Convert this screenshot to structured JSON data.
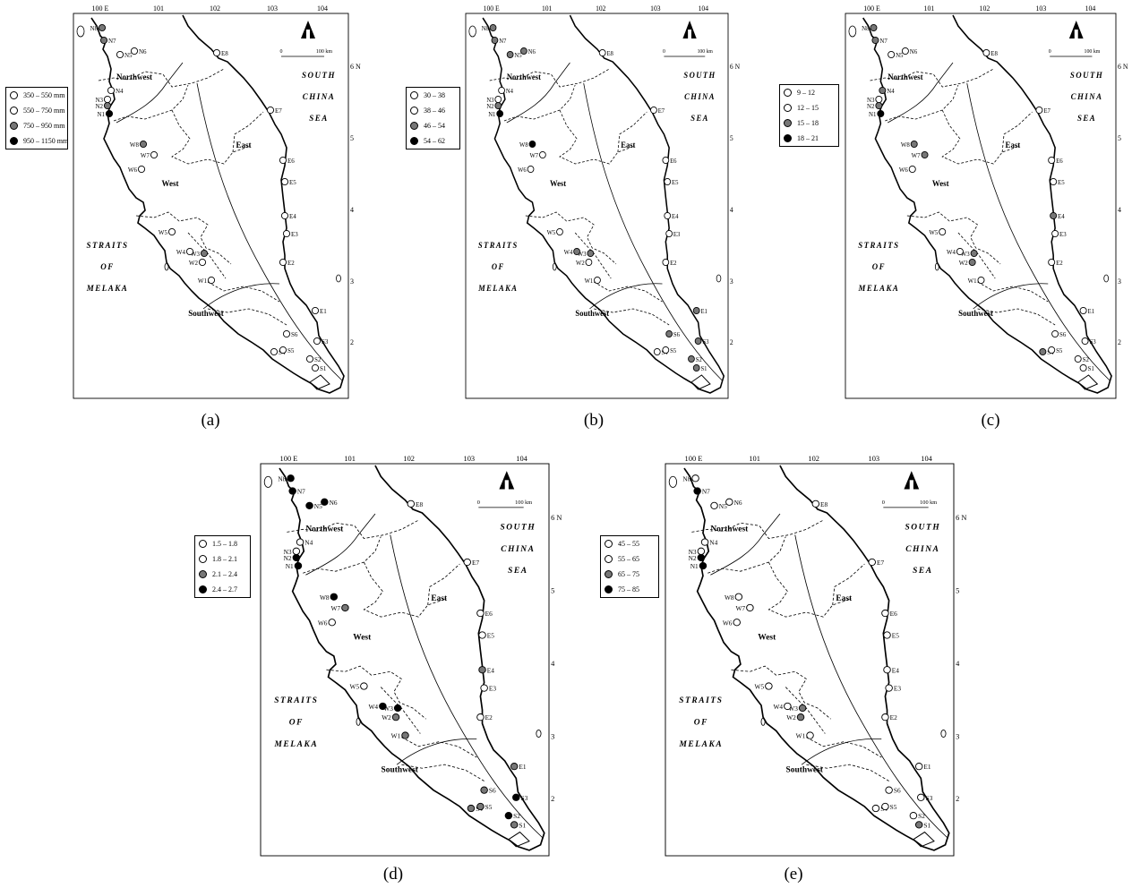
{
  "panels": [
    {
      "caption": "(a)",
      "legend": [
        {
          "label": "350 – 550 mm",
          "fill": "#ffffff"
        },
        {
          "label": "550 – 750 mm",
          "fill": "#ffffff"
        },
        {
          "label": "750 – 950 mm",
          "fill": "#777777"
        },
        {
          "label": "950 – 1150 mm",
          "fill": "#000000"
        }
      ],
      "stations": {
        "N8": 3,
        "N7": 3,
        "N1": 4,
        "N2": 3,
        "N3": 1,
        "N4": 1,
        "N5": 1,
        "N6": 1,
        "W8": 3,
        "W3": 3,
        "E1": 1,
        "S1": 1
      }
    },
    {
      "caption": "(b)",
      "legend": [
        {
          "label": "30 – 38",
          "fill": "#ffffff"
        },
        {
          "label": "38 – 46",
          "fill": "#ffffff"
        },
        {
          "label": "46 – 54",
          "fill": "#777777"
        },
        {
          "label": "54 – 62",
          "fill": "#000000"
        }
      ],
      "stations": {
        "N8": 3,
        "N7": 3,
        "N5": 3,
        "N6": 3,
        "N1": 4,
        "N2": 3,
        "W8": 4,
        "W3": 3,
        "W4": 3,
        "E1": 3,
        "S6": 3,
        "S3": 3,
        "S2": 3,
        "S1": 3
      }
    },
    {
      "caption": "(c)",
      "legend": [
        {
          "label": "9 – 12",
          "fill": "#ffffff"
        },
        {
          "label": "12 – 15",
          "fill": "#ffffff"
        },
        {
          "label": "15 – 18",
          "fill": "#777777"
        },
        {
          "label": "18 – 21",
          "fill": "#000000"
        }
      ],
      "stations": {
        "N7": 3,
        "N8": 3,
        "N4": 3,
        "N1": 4,
        "N2": 3,
        "W8": 3,
        "W7": 3,
        "W3": 3,
        "W2": 3,
        "E4": 3,
        "S4": 3
      }
    },
    {
      "caption": "(d)",
      "legend": [
        {
          "label": "1.5 – 1.8",
          "fill": "#ffffff"
        },
        {
          "label": "1.8 – 2.1",
          "fill": "#ffffff"
        },
        {
          "label": "2.1 – 2.4",
          "fill": "#777777"
        },
        {
          "label": "2.4 – 2.7",
          "fill": "#000000"
        }
      ],
      "stations": {
        "N8": 4,
        "N7": 4,
        "N5": 4,
        "N6": 4,
        "N1": 4,
        "N2": 4,
        "W8": 4,
        "W7": 3,
        "W3": 4,
        "W4": 4,
        "W2": 3,
        "W1": 3,
        "E4": 3,
        "E1": 3,
        "S6": 3,
        "S4": 3,
        "S5": 3,
        "S3": 4,
        "S2": 4,
        "S1": 3
      }
    },
    {
      "caption": "(e)",
      "legend": [
        {
          "label": "45 – 55",
          "fill": "#ffffff"
        },
        {
          "label": "55 – 65",
          "fill": "#ffffff"
        },
        {
          "label": "65 – 75",
          "fill": "#777777"
        },
        {
          "label": "75 – 85",
          "fill": "#000000"
        }
      ],
      "stations": {
        "N7": 4,
        "N1": 4,
        "N2": 4,
        "W2": 3,
        "W3": 3,
        "S1": 3
      }
    }
  ],
  "common": {
    "lon_labels": [
      "100 E",
      "101",
      "102",
      "103",
      "104"
    ],
    "lat_labels": [
      "6 N",
      "5",
      "4",
      "3",
      "2"
    ],
    "scale": {
      "zero": "0",
      "end": "100 km"
    },
    "sea_south_china": [
      "SOUTH",
      "CHINA",
      "SEA"
    ],
    "sea_melaka": [
      "STRAITS",
      "OF",
      "MELAKA"
    ],
    "regions": [
      "Northwest",
      "East",
      "West",
      "Southwest"
    ],
    "station_names": [
      "N1",
      "N2",
      "N3",
      "N4",
      "N5",
      "N6",
      "N7",
      "N8",
      "W1",
      "W2",
      "W3",
      "W4",
      "W5",
      "W6",
      "W7",
      "W8",
      "E1",
      "E2",
      "E3",
      "E4",
      "E5",
      "E6",
      "E7",
      "E8",
      "S1",
      "S2",
      "S3",
      "S4",
      "S5",
      "S6"
    ]
  },
  "colors": {
    "class_low": "#ffffff",
    "class_mid": "#777777",
    "class_high": "#000000"
  }
}
